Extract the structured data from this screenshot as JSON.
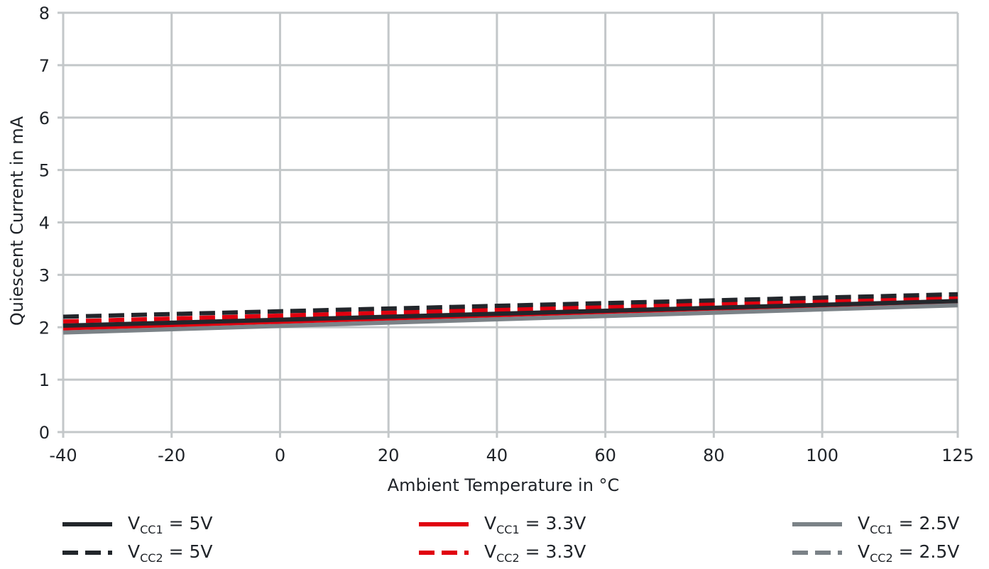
{
  "chart_data": {
    "type": "line",
    "title": "",
    "xlabel": "Ambient Temperature in °C",
    "ylabel": "Quiescent Current in mA",
    "xlim": [
      -40,
      125
    ],
    "ylim": [
      0,
      8
    ],
    "xticks": [
      -40,
      -20,
      0,
      20,
      40,
      60,
      80,
      100,
      125
    ],
    "xtick_labels": [
      "-40",
      "-20",
      "0",
      "20",
      "40",
      "60",
      "80",
      "100",
      "125"
    ],
    "yticks": [
      0,
      1,
      2,
      3,
      4,
      5,
      6,
      7,
      8
    ],
    "grid": true,
    "legend_position": "bottom",
    "x": [
      -40,
      125
    ],
    "series": [
      {
        "name": "VCC1 = 5V",
        "label_main": "V",
        "label_sub": "CC1",
        "label_rest": " = 5V",
        "color": "#22262b",
        "dash": "solid",
        "values": [
          2.03,
          2.5
        ]
      },
      {
        "name": "VCC2 = 5V",
        "label_main": "V",
        "label_sub": "CC2",
        "label_rest": " = 5V",
        "color": "#22262b",
        "dash": "dashed",
        "values": [
          2.2,
          2.63
        ]
      },
      {
        "name": "VCC1 = 3.3V",
        "label_main": "V",
        "label_sub": "CC1",
        "label_rest": " = 3.3V",
        "color": "#e0000f",
        "dash": "solid",
        "values": [
          1.98,
          2.5
        ]
      },
      {
        "name": "VCC2 = 3.3V",
        "label_main": "V",
        "label_sub": "CC2",
        "label_rest": " = 3.3V",
        "color": "#e0000f",
        "dash": "dashed",
        "values": [
          2.11,
          2.57
        ]
      },
      {
        "name": "VCC1 = 2.5V",
        "label_main": "V",
        "label_sub": "CC1",
        "label_rest": " = 2.5V",
        "color": "#7b8287",
        "dash": "solid",
        "values": [
          1.9,
          2.42
        ]
      },
      {
        "name": "VCC2 = 2.5V",
        "label_main": "V",
        "label_sub": "CC2",
        "label_rest": " = 2.5V",
        "color": "#7b8287",
        "dash": "dashed",
        "values": [
          2.02,
          2.5
        ]
      }
    ]
  }
}
